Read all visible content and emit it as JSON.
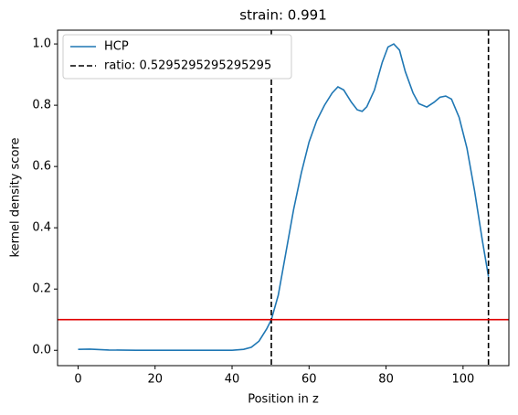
{
  "chart_data": {
    "type": "line",
    "title": "strain: 0.991",
    "xlabel": "Position in z",
    "ylabel": "kernel density score",
    "xlim": [
      -5.33,
      111.9
    ],
    "ylim": [
      -0.05,
      1.045
    ],
    "xticks": [
      0,
      20,
      40,
      60,
      80,
      100
    ],
    "yticks": [
      {
        "value": 0,
        "label": "0.0"
      },
      {
        "value": 0.2,
        "label": "0.2"
      },
      {
        "value": 0.4,
        "label": "0.4"
      },
      {
        "value": 0.6,
        "label": "0.6"
      },
      {
        "value": 0.8,
        "label": "0.8"
      },
      {
        "value": 1,
        "label": "1.0"
      }
    ],
    "legend": "upper left",
    "series": [
      {
        "name": "HCP",
        "color": "#1f77b4",
        "x": [
          0,
          3,
          8,
          15,
          30,
          40,
          43,
          45,
          47,
          49,
          50.2,
          52,
          54,
          56,
          58,
          60,
          62,
          64,
          66,
          67.5,
          69,
          71,
          72.5,
          73.8,
          75,
          77,
          79,
          80.5,
          82,
          83.5,
          85,
          87,
          88.5,
          90.6,
          92.5,
          94,
          95.5,
          97,
          99,
          101,
          103,
          105,
          106.6
        ],
        "values": [
          0.003,
          0.004,
          0.001,
          0,
          0,
          0,
          0.003,
          0.01,
          0.03,
          0.07,
          0.1,
          0.18,
          0.32,
          0.46,
          0.58,
          0.68,
          0.75,
          0.8,
          0.84,
          0.86,
          0.85,
          0.81,
          0.785,
          0.78,
          0.795,
          0.85,
          0.94,
          0.99,
          1.0,
          0.98,
          0.91,
          0.84,
          0.805,
          0.794,
          0.81,
          0.826,
          0.83,
          0.82,
          0.76,
          0.66,
          0.52,
          0.36,
          0.24
        ]
      }
    ],
    "vlines": {
      "name": "ratio: 0.5295295295295295",
      "color": "#000000",
      "x": [
        50.2,
        106.6
      ]
    },
    "hline": {
      "y": 0.1,
      "color": "#e00000"
    }
  }
}
